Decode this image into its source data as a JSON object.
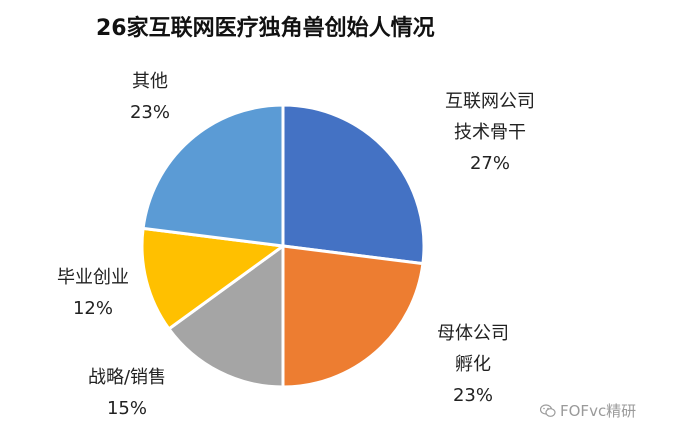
{
  "chart_data": {
    "type": "pie",
    "title": "26家互联网医疗独角兽创始人情况",
    "slices": [
      {
        "label_lines": [
          "互联网公司",
          "技术骨干"
        ],
        "value": 27,
        "value_label": "27%",
        "color": "#4472C4"
      },
      {
        "label_lines": [
          "母体公司",
          "孵化"
        ],
        "value": 23,
        "value_label": "23%",
        "color": "#ED7D31"
      },
      {
        "label_lines": [
          "战略/销售"
        ],
        "value": 15,
        "value_label": "15%",
        "color": "#A5A5A5"
      },
      {
        "label_lines": [
          "毕业创业"
        ],
        "value": 12,
        "value_label": "12%",
        "color": "#FFC000"
      },
      {
        "label_lines": [
          "其他"
        ],
        "value": 23,
        "value_label": "23%",
        "color": "#5B9BD5"
      }
    ]
  },
  "watermark": {
    "text": "FOFvc精研",
    "icon": "wechat-icon"
  }
}
